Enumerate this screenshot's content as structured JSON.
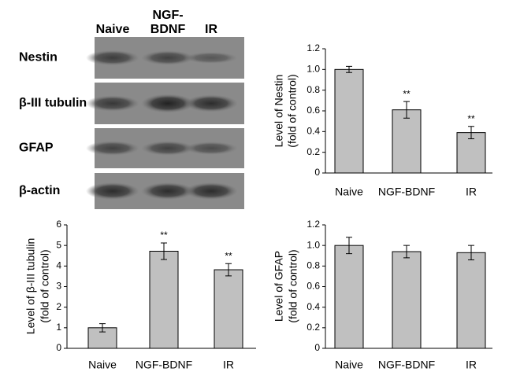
{
  "blot": {
    "columns": [
      "Naive",
      [
        "NGF-",
        "BDNF"
      ],
      "IR"
    ],
    "rows": [
      "Nestin",
      "β-III tubulin",
      "GFAP",
      "β-actin"
    ]
  },
  "chart_data": [
    {
      "type": "bar",
      "ylabel": [
        "Level of Nestin",
        "(fold of control)"
      ],
      "categories": [
        "Naive",
        "NGF-BDNF",
        "IR"
      ],
      "values": [
        1.0,
        0.61,
        0.39
      ],
      "errors": [
        0.03,
        0.08,
        0.06
      ],
      "annotations": [
        null,
        "**",
        "**"
      ],
      "color": "#c0c0c0",
      "ylim": [
        0,
        1.2
      ],
      "yticks": [
        0,
        0.2,
        0.4,
        0.6,
        0.8,
        {
          "value": 1,
          "label": "1.0"
        },
        1.2
      ]
    },
    {
      "type": "bar",
      "ylabel": [
        "Level of β-III tubulin",
        "(fold of control)"
      ],
      "categories": [
        "Naive",
        "NGF-BDNF",
        "IR"
      ],
      "values": [
        1.0,
        4.72,
        3.82
      ],
      "errors": [
        0.2,
        0.4,
        0.3
      ],
      "annotations": [
        null,
        "**",
        "**"
      ],
      "color": "#c0c0c0",
      "ylim": [
        0,
        6
      ],
      "yticks": [
        0,
        1,
        2,
        3,
        4,
        5,
        6
      ]
    },
    {
      "type": "bar",
      "ylabel": [
        "Level of GFAP",
        "(fold of control)"
      ],
      "categories": [
        "Naive",
        "NGF-BDNF",
        "IR"
      ],
      "values": [
        1.0,
        0.94,
        0.93
      ],
      "errors": [
        0.08,
        0.06,
        0.07
      ],
      "color": "#c0c0c0",
      "ylim": [
        0,
        1.2
      ],
      "yticks": [
        0,
        0.2,
        0.4,
        0.6,
        0.8,
        {
          "value": 1,
          "label": "1.0"
        },
        1.2
      ]
    }
  ]
}
